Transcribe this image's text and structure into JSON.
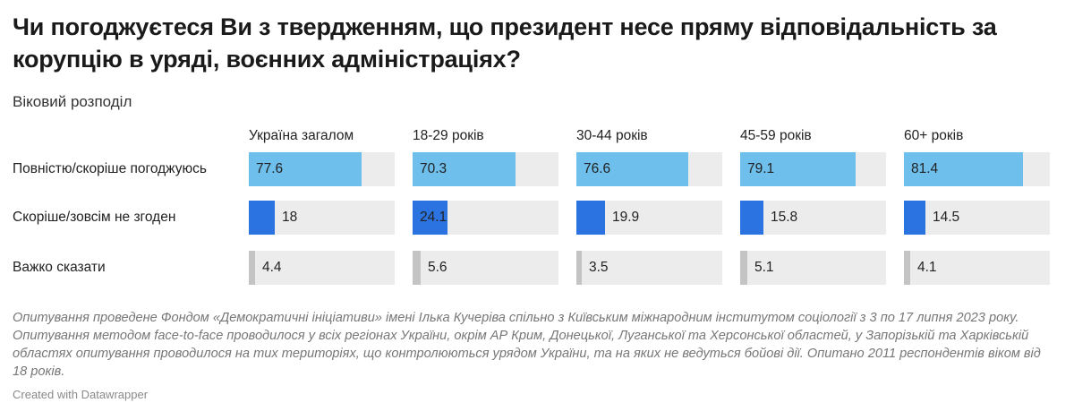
{
  "title": "Чи погоджуєтеся Ви з твердженням, що президент несе пряму відповідальність за корупцію в уряді, воєнних адміністраціях?",
  "subtitle": "Віковий розподіл",
  "notes": "Опитування проведене Фондом «Демократичні ініціативи» імені Ілька Кучеріва спільно з Київським міжнародним інститутом соціології з 3 по 17 липня 2023 року. Опитування методом face-to-face проводилося у всіх регіонах України, окрім АР Крим, Донецької, Луганської та Херсонської областей, у Запорізькій та Харківській областях опитування проводилося на тих територіях, що контролюються урядом України, та на яких не ведуться бойові дії. Опитано 2011 респондентів віком від 18 років.",
  "credit": "Created with Datawrapper",
  "colors": {
    "agree": "#6fbfec",
    "disagree": "#2b73e0",
    "hard_to_say": "#c4c4c4",
    "track": "#ececec"
  },
  "chart_data": {
    "type": "bar",
    "title": "Чи погоджуєтеся Ви з твердженням, що президент несе пряму відповідальність за корупцію в уряді, воєнних адміністраціях?",
    "subtitle": "Віковий розподіл",
    "categories": [
      "Україна загалом",
      "18-29 років",
      "30-44 років",
      "45-59 років",
      "60+ років"
    ],
    "series": [
      {
        "name": "Повністю/скоріше погоджуюсь",
        "values": [
          77.6,
          70.3,
          76.6,
          79.1,
          81.4
        ]
      },
      {
        "name": "Скоріше/зовсім не згоден",
        "values": [
          18,
          24.1,
          19.9,
          15.8,
          14.5
        ]
      },
      {
        "name": "Важко сказати",
        "values": [
          4.4,
          5.6,
          3.5,
          5.1,
          4.1
        ]
      }
    ],
    "ylim": [
      0,
      100
    ]
  }
}
